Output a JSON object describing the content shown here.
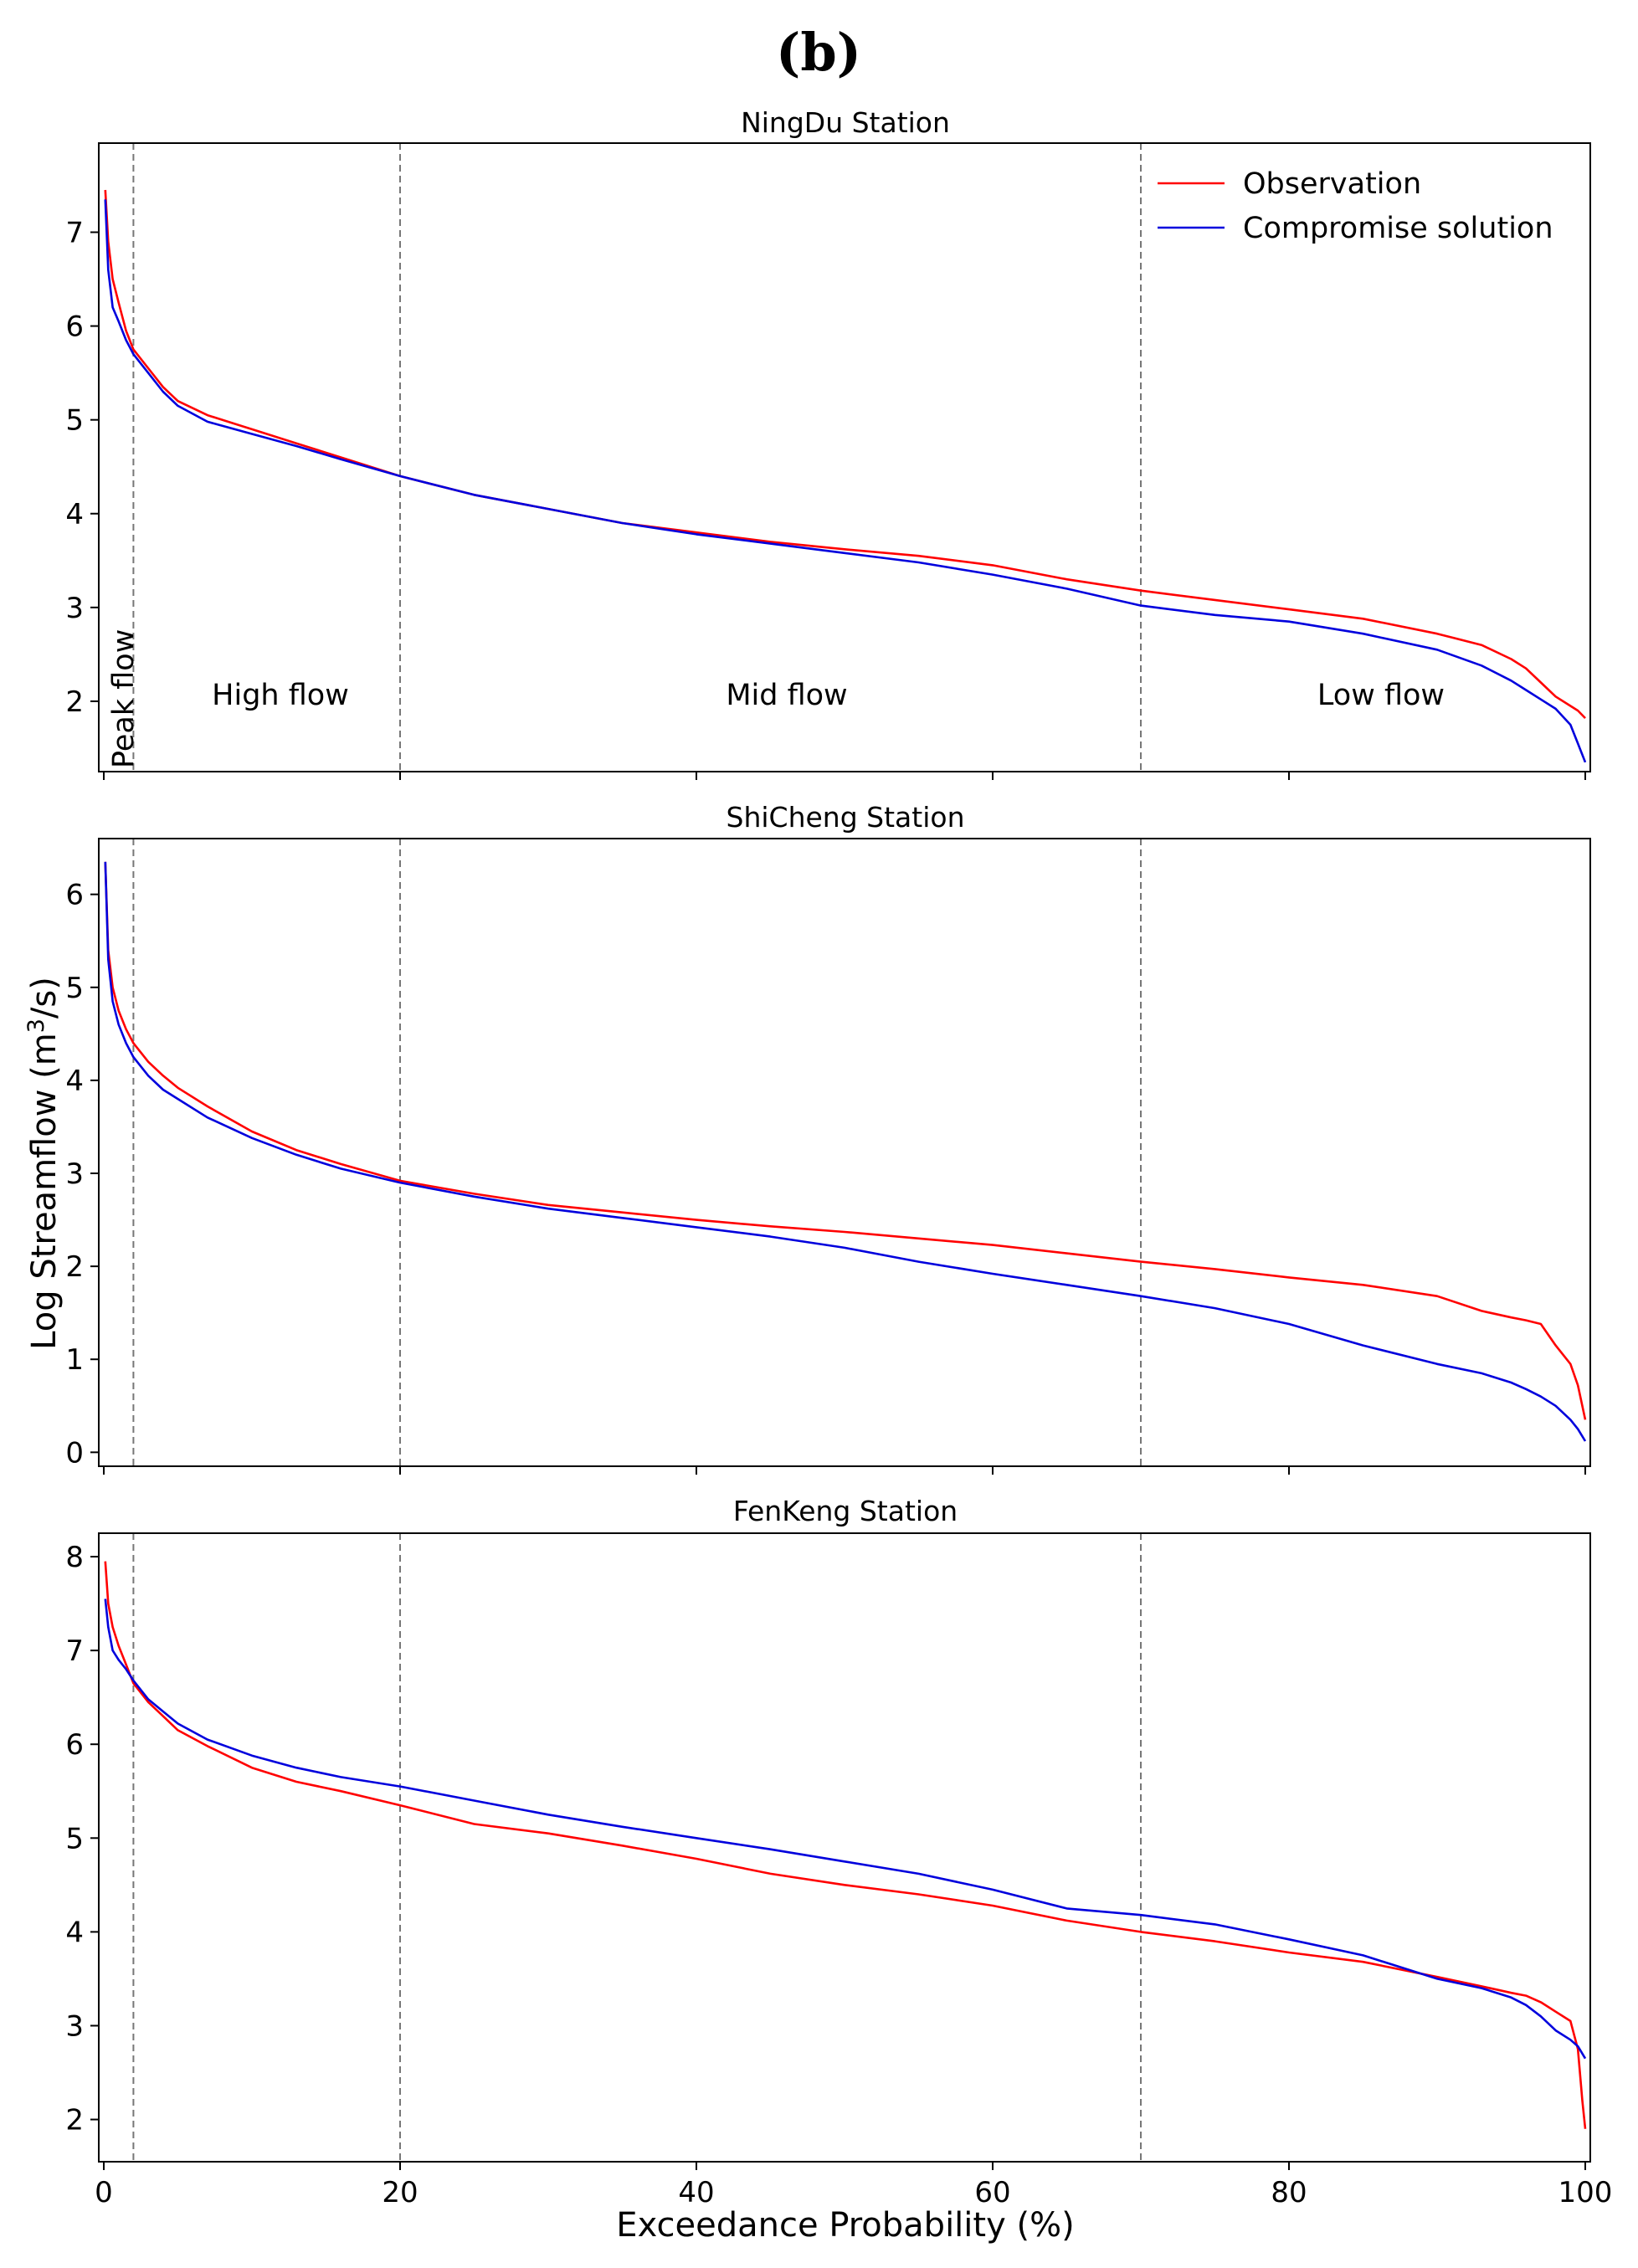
{
  "panel_label": "(b)",
  "colors": {
    "observation": "#ff0000",
    "compromise": "#0000dd",
    "divider": "#777777",
    "frame": "#000000"
  },
  "legend": {
    "observation": "Observation",
    "compromise": "Compromise solution"
  },
  "ylabel": "Log Streamflow (m",
  "ylabel_sup": "3",
  "ylabel_end": "/s)",
  "xlabel": "Exceedance Probability (%)",
  "regions": {
    "peak": "Peak flow",
    "high": "High flow",
    "mid": "Mid flow",
    "low": "Low flow"
  },
  "chart_data": [
    {
      "type": "line",
      "title": "NingDu Station",
      "xlim": [
        0,
        100
      ],
      "ylim": [
        1.25,
        7.95
      ],
      "yticks": [
        2,
        3,
        4,
        5,
        6,
        7
      ],
      "xticks": [
        0,
        20,
        40,
        60,
        80,
        100
      ],
      "dividers": [
        2,
        20,
        70
      ],
      "series": [
        {
          "name": "Observation",
          "color": "#ff0000",
          "x": [
            0.1,
            0.3,
            0.6,
            1,
            1.5,
            2,
            3,
            4,
            5,
            7,
            10,
            13,
            16,
            20,
            25,
            30,
            35,
            40,
            45,
            50,
            55,
            60,
            65,
            70,
            75,
            80,
            85,
            90,
            93,
            95,
            96,
            97,
            98,
            99,
            99.5,
            100
          ],
          "y": [
            7.45,
            6.9,
            6.5,
            6.25,
            5.95,
            5.75,
            5.55,
            5.35,
            5.2,
            5.05,
            4.9,
            4.75,
            4.6,
            4.4,
            4.2,
            4.05,
            3.9,
            3.8,
            3.7,
            3.62,
            3.55,
            3.45,
            3.3,
            3.18,
            3.08,
            2.98,
            2.88,
            2.72,
            2.6,
            2.45,
            2.35,
            2.2,
            2.05,
            1.95,
            1.9,
            1.82
          ]
        },
        {
          "name": "Compromise solution",
          "color": "#0000dd",
          "x": [
            0.1,
            0.3,
            0.6,
            1,
            1.5,
            2,
            3,
            4,
            5,
            7,
            10,
            13,
            16,
            20,
            25,
            30,
            35,
            40,
            45,
            50,
            55,
            60,
            65,
            70,
            75,
            80,
            85,
            90,
            93,
            95,
            96,
            97,
            98,
            99,
            99.5,
            100
          ],
          "y": [
            7.35,
            6.6,
            6.2,
            6.05,
            5.85,
            5.7,
            5.5,
            5.3,
            5.15,
            4.98,
            4.85,
            4.72,
            4.58,
            4.4,
            4.2,
            4.05,
            3.9,
            3.78,
            3.68,
            3.58,
            3.48,
            3.35,
            3.2,
            3.02,
            2.92,
            2.85,
            2.72,
            2.55,
            2.38,
            2.22,
            2.12,
            2.02,
            1.92,
            1.75,
            1.55,
            1.35
          ]
        }
      ]
    },
    {
      "type": "line",
      "title": "ShiCheng Station",
      "xlim": [
        0,
        100
      ],
      "ylim": [
        -0.15,
        6.6
      ],
      "yticks": [
        0,
        1,
        2,
        3,
        4,
        5,
        6
      ],
      "xticks": [
        0,
        20,
        40,
        60,
        80,
        100
      ],
      "dividers": [
        2,
        20,
        70
      ],
      "series": [
        {
          "name": "Observation",
          "color": "#ff0000",
          "x": [
            0.1,
            0.3,
            0.6,
            1,
            1.5,
            2,
            3,
            4,
            5,
            7,
            10,
            13,
            16,
            20,
            25,
            30,
            35,
            40,
            45,
            50,
            55,
            60,
            65,
            70,
            75,
            80,
            85,
            90,
            93,
            95,
            96,
            97,
            98,
            99,
            99.5,
            100
          ],
          "y": [
            6.35,
            5.4,
            5.0,
            4.75,
            4.55,
            4.4,
            4.2,
            4.05,
            3.92,
            3.72,
            3.45,
            3.25,
            3.1,
            2.92,
            2.78,
            2.66,
            2.58,
            2.5,
            2.43,
            2.37,
            2.3,
            2.23,
            2.14,
            2.05,
            1.97,
            1.88,
            1.8,
            1.68,
            1.52,
            1.45,
            1.42,
            1.38,
            1.15,
            0.95,
            0.72,
            0.35
          ]
        },
        {
          "name": "Compromise solution",
          "color": "#0000dd",
          "x": [
            0.1,
            0.3,
            0.6,
            1,
            1.5,
            2,
            3,
            4,
            5,
            7,
            10,
            13,
            16,
            20,
            25,
            30,
            35,
            40,
            45,
            50,
            55,
            60,
            65,
            70,
            75,
            80,
            85,
            90,
            93,
            95,
            96,
            97,
            98,
            99,
            99.5,
            100
          ],
          "y": [
            6.35,
            5.3,
            4.85,
            4.6,
            4.4,
            4.25,
            4.05,
            3.9,
            3.8,
            3.6,
            3.38,
            3.2,
            3.05,
            2.9,
            2.75,
            2.62,
            2.52,
            2.42,
            2.32,
            2.2,
            2.05,
            1.92,
            1.8,
            1.68,
            1.55,
            1.38,
            1.15,
            0.95,
            0.85,
            0.75,
            0.68,
            0.6,
            0.5,
            0.35,
            0.25,
            0.12
          ]
        }
      ]
    },
    {
      "type": "line",
      "title": "FenKeng Station",
      "xlim": [
        0,
        100
      ],
      "ylim": [
        1.55,
        8.25
      ],
      "yticks": [
        2,
        3,
        4,
        5,
        6,
        7,
        8
      ],
      "xticks": [
        0,
        20,
        40,
        60,
        80,
        100
      ],
      "dividers": [
        2,
        20,
        70
      ],
      "series": [
        {
          "name": "Observation",
          "color": "#ff0000",
          "x": [
            0.1,
            0.3,
            0.6,
            1,
            1.5,
            2,
            3,
            4,
            5,
            7,
            10,
            13,
            16,
            20,
            25,
            30,
            35,
            40,
            45,
            50,
            55,
            60,
            65,
            70,
            75,
            80,
            85,
            90,
            93,
            95,
            96,
            97,
            98,
            99,
            99.5,
            99.8,
            100
          ],
          "y": [
            7.95,
            7.5,
            7.25,
            7.05,
            6.85,
            6.65,
            6.45,
            6.3,
            6.15,
            5.98,
            5.75,
            5.6,
            5.5,
            5.35,
            5.15,
            5.05,
            4.92,
            4.78,
            4.62,
            4.5,
            4.4,
            4.28,
            4.12,
            4.0,
            3.9,
            3.78,
            3.68,
            3.52,
            3.42,
            3.35,
            3.32,
            3.25,
            3.15,
            3.05,
            2.75,
            2.2,
            1.9
          ]
        },
        {
          "name": "Compromise solution",
          "color": "#0000dd",
          "x": [
            0.1,
            0.3,
            0.6,
            1,
            1.5,
            2,
            3,
            4,
            5,
            7,
            10,
            13,
            16,
            20,
            25,
            30,
            35,
            40,
            45,
            50,
            55,
            60,
            65,
            70,
            75,
            80,
            85,
            90,
            93,
            95,
            96,
            97,
            98,
            99,
            99.5,
            100
          ],
          "y": [
            7.55,
            7.25,
            7.0,
            6.9,
            6.8,
            6.68,
            6.48,
            6.35,
            6.22,
            6.05,
            5.88,
            5.75,
            5.65,
            5.55,
            5.4,
            5.25,
            5.12,
            5.0,
            4.88,
            4.75,
            4.62,
            4.45,
            4.25,
            4.18,
            4.08,
            3.92,
            3.75,
            3.5,
            3.4,
            3.3,
            3.22,
            3.1,
            2.95,
            2.85,
            2.78,
            2.65
          ]
        }
      ]
    }
  ]
}
